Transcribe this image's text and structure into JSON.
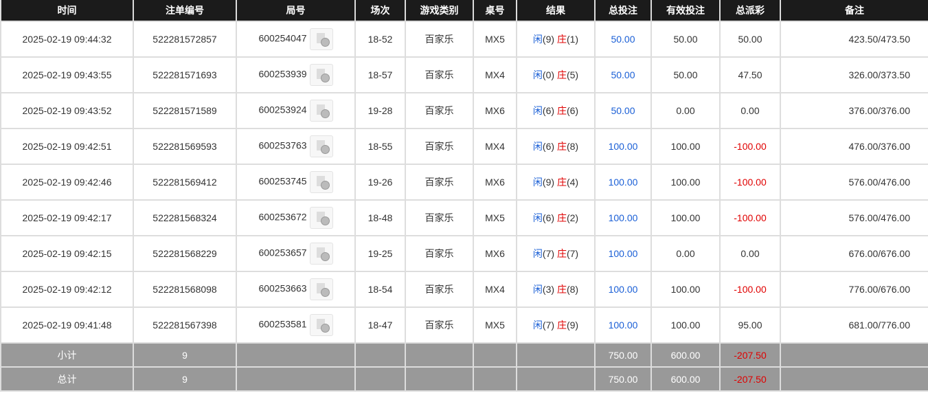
{
  "headers": [
    "时间",
    "注单编号",
    "局号",
    "场次",
    "游戏类别",
    "桌号",
    "结果",
    "总投注",
    "有效投注",
    "总派彩",
    "备注"
  ],
  "rows": [
    {
      "time": "2025-02-19 09:44:32",
      "bet_id": "522281572857",
      "round": "600254047",
      "shoe": "18-52",
      "game": "百家乐",
      "table": "MX5",
      "player": "闲",
      "player_pts": "(9)",
      "banker": "庄",
      "banker_pts": "(1)",
      "total_bet": "50.00",
      "valid_bet": "50.00",
      "payout": "50.00",
      "payout_neg": false,
      "remark": "423.50/473.50"
    },
    {
      "time": "2025-02-19 09:43:55",
      "bet_id": "522281571693",
      "round": "600253939",
      "shoe": "18-57",
      "game": "百家乐",
      "table": "MX4",
      "player": "闲",
      "player_pts": "(0)",
      "banker": "庄",
      "banker_pts": "(5)",
      "total_bet": "50.00",
      "valid_bet": "50.00",
      "payout": "47.50",
      "payout_neg": false,
      "remark": "326.00/373.50"
    },
    {
      "time": "2025-02-19 09:43:52",
      "bet_id": "522281571589",
      "round": "600253924",
      "shoe": "19-28",
      "game": "百家乐",
      "table": "MX6",
      "player": "闲",
      "player_pts": "(6)",
      "banker": "庄",
      "banker_pts": "(6)",
      "total_bet": "50.00",
      "valid_bet": "0.00",
      "payout": "0.00",
      "payout_neg": false,
      "remark": "376.00/376.00"
    },
    {
      "time": "2025-02-19 09:42:51",
      "bet_id": "522281569593",
      "round": "600253763",
      "shoe": "18-55",
      "game": "百家乐",
      "table": "MX4",
      "player": "闲",
      "player_pts": "(6)",
      "banker": "庄",
      "banker_pts": "(8)",
      "total_bet": "100.00",
      "valid_bet": "100.00",
      "payout": "-100.00",
      "payout_neg": true,
      "remark": "476.00/376.00"
    },
    {
      "time": "2025-02-19 09:42:46",
      "bet_id": "522281569412",
      "round": "600253745",
      "shoe": "19-26",
      "game": "百家乐",
      "table": "MX6",
      "player": "闲",
      "player_pts": "(9)",
      "banker": "庄",
      "banker_pts": "(4)",
      "total_bet": "100.00",
      "valid_bet": "100.00",
      "payout": "-100.00",
      "payout_neg": true,
      "remark": "576.00/476.00"
    },
    {
      "time": "2025-02-19 09:42:17",
      "bet_id": "522281568324",
      "round": "600253672",
      "shoe": "18-48",
      "game": "百家乐",
      "table": "MX5",
      "player": "闲",
      "player_pts": "(6)",
      "banker": "庄",
      "banker_pts": "(2)",
      "total_bet": "100.00",
      "valid_bet": "100.00",
      "payout": "-100.00",
      "payout_neg": true,
      "remark": "576.00/476.00"
    },
    {
      "time": "2025-02-19 09:42:15",
      "bet_id": "522281568229",
      "round": "600253657",
      "shoe": "19-25",
      "game": "百家乐",
      "table": "MX6",
      "player": "闲",
      "player_pts": "(7)",
      "banker": "庄",
      "banker_pts": "(7)",
      "total_bet": "100.00",
      "valid_bet": "0.00",
      "payout": "0.00",
      "payout_neg": false,
      "remark": "676.00/676.00"
    },
    {
      "time": "2025-02-19 09:42:12",
      "bet_id": "522281568098",
      "round": "600253663",
      "shoe": "18-54",
      "game": "百家乐",
      "table": "MX4",
      "player": "闲",
      "player_pts": "(3)",
      "banker": "庄",
      "banker_pts": "(8)",
      "total_bet": "100.00",
      "valid_bet": "100.00",
      "payout": "-100.00",
      "payout_neg": true,
      "remark": "776.00/676.00"
    },
    {
      "time": "2025-02-19 09:41:48",
      "bet_id": "522281567398",
      "round": "600253581",
      "shoe": "18-47",
      "game": "百家乐",
      "table": "MX5",
      "player": "闲",
      "player_pts": "(7)",
      "banker": "庄",
      "banker_pts": "(9)",
      "total_bet": "100.00",
      "valid_bet": "100.00",
      "payout": "95.00",
      "payout_neg": false,
      "remark": "681.00/776.00"
    }
  ],
  "summary": [
    {
      "label": "小计",
      "count": "9",
      "total_bet": "750.00",
      "valid_bet": "600.00",
      "payout": "-207.50"
    },
    {
      "label": "总计",
      "count": "9",
      "total_bet": "750.00",
      "valid_bet": "600.00",
      "payout": "-207.50"
    }
  ],
  "colors": {
    "header_bg": "#1b1b1b",
    "player": "#1a5fd6",
    "banker": "#e00000",
    "summary_bg": "#999999"
  }
}
